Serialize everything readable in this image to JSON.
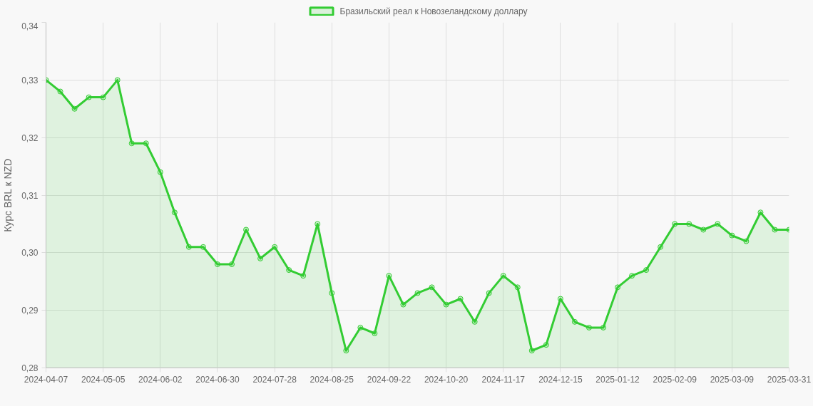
{
  "chart_data": {
    "type": "area",
    "ylabel": "Курс BRL к NZD",
    "categories": [
      "2024-04-07",
      null,
      null,
      null,
      "2024-05-05",
      null,
      null,
      null,
      "2024-06-02",
      null,
      null,
      null,
      "2024-06-30",
      null,
      null,
      null,
      "2024-07-28",
      null,
      null,
      null,
      "2024-08-25",
      null,
      null,
      null,
      "2024-09-22",
      null,
      null,
      null,
      "2024-10-20",
      null,
      null,
      null,
      "2024-11-17",
      null,
      null,
      null,
      "2024-12-15",
      null,
      null,
      null,
      "2025-01-12",
      null,
      null,
      null,
      "2025-02-09",
      null,
      null,
      null,
      "2025-03-09",
      null,
      null,
      null,
      "2025-03-31"
    ],
    "series": [
      {
        "name": "Бразильский реал к Новозеландскому доллару",
        "color": "#33cc33",
        "values": [
          0.33,
          0.328,
          0.325,
          0.327,
          0.327,
          0.33,
          0.319,
          0.319,
          0.314,
          0.307,
          0.301,
          0.301,
          0.298,
          0.298,
          0.304,
          0.299,
          0.301,
          0.297,
          0.296,
          0.305,
          0.293,
          0.283,
          0.287,
          0.286,
          0.296,
          0.291,
          0.293,
          0.294,
          0.291,
          0.292,
          0.288,
          0.293,
          0.296,
          0.294,
          0.283,
          0.284,
          0.292,
          0.288,
          0.287,
          0.287,
          0.294,
          0.296,
          0.297,
          0.301,
          0.305,
          0.305,
          0.304,
          0.305,
          0.303,
          0.302,
          0.307,
          0.304,
          0.304
        ]
      }
    ],
    "ylim": [
      0.28,
      0.34
    ],
    "yticks": [
      {
        "value": 0.28,
        "label": "0,28"
      },
      {
        "value": 0.29,
        "label": "0,29"
      },
      {
        "value": 0.3,
        "label": "0,30"
      },
      {
        "value": 0.31,
        "label": "0,31"
      },
      {
        "value": 0.32,
        "label": "0,32"
      },
      {
        "value": 0.33,
        "label": "0,33"
      },
      {
        "value": 0.34,
        "label": "0,34"
      }
    ],
    "grid": true,
    "legend": "top",
    "marker": "circle",
    "line_style": "solid"
  }
}
